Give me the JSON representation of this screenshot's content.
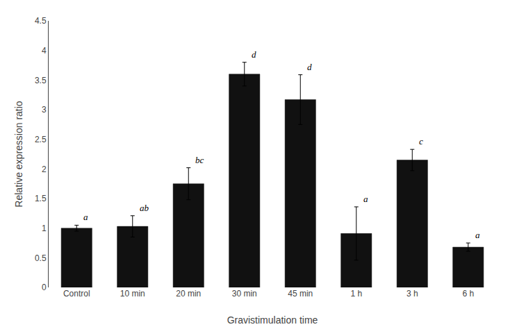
{
  "chart_data": {
    "type": "bar",
    "categories": [
      "Control",
      "10 min",
      "20 min",
      "30 min",
      "45 min",
      "1 h",
      "3 h",
      "6 h"
    ],
    "values": [
      1.0,
      1.03,
      1.75,
      3.6,
      3.17,
      0.91,
      2.15,
      0.68
    ],
    "errors": [
      0.05,
      0.18,
      0.27,
      0.2,
      0.42,
      0.45,
      0.18,
      0.07
    ],
    "annotations": [
      "a",
      "ab",
      "bc",
      "d",
      "d",
      "a",
      "c",
      "a"
    ],
    "color": "#111111",
    "xlabel": "Gravistimulation time",
    "ylabel": "Relative expression ratio",
    "ylim": [
      0,
      4.5
    ],
    "yticks": [
      0,
      0.5,
      1,
      1.5,
      2,
      2.5,
      3,
      3.5,
      4,
      4.5
    ],
    "grid": false
  }
}
